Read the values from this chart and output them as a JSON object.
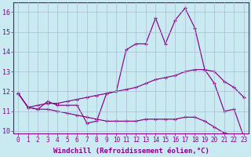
{
  "background_color": "#c8eaf0",
  "grid_color": "#b0b8d8",
  "line_color": "#880088",
  "xlabel": "Windchill (Refroidissement éolien,°C)",
  "xlabel_fontsize": 6.5,
  "xtick_fontsize": 5.5,
  "ytick_fontsize": 6.0,
  "ylim": [
    9.9,
    16.5
  ],
  "xlim": [
    -0.5,
    23.5
  ],
  "yticks": [
    10,
    11,
    12,
    13,
    14,
    15,
    16
  ],
  "xticks": [
    0,
    1,
    2,
    3,
    4,
    5,
    6,
    7,
    8,
    9,
    10,
    11,
    12,
    13,
    14,
    15,
    16,
    17,
    18,
    19,
    20,
    21,
    22,
    23
  ],
  "series": {
    "main": {
      "x": [
        0,
        1,
        2,
        3,
        4,
        5,
        6,
        7,
        8,
        9,
        10,
        11,
        12,
        13,
        14,
        15,
        16,
        17,
        18,
        19,
        20,
        21,
        22,
        23
      ],
      "y": [
        11.9,
        11.2,
        11.1,
        11.5,
        11.3,
        11.3,
        11.3,
        10.4,
        10.5,
        11.9,
        12.0,
        14.1,
        14.4,
        14.4,
        15.7,
        14.4,
        15.6,
        16.2,
        15.2,
        13.1,
        12.4,
        11.0,
        11.1,
        9.7
      ]
    },
    "upper": {
      "x": [
        0,
        1,
        2,
        3,
        4,
        5,
        6,
        7,
        8,
        9,
        10,
        11,
        12,
        13,
        14,
        15,
        16,
        17,
        18,
        19,
        20,
        21,
        22,
        23
      ],
      "y": [
        11.9,
        11.2,
        11.3,
        11.4,
        11.4,
        11.5,
        11.6,
        11.7,
        11.8,
        11.9,
        12.0,
        12.1,
        12.2,
        12.4,
        12.6,
        12.7,
        12.8,
        13.0,
        13.1,
        13.1,
        13.0,
        12.5,
        12.2,
        11.7
      ]
    },
    "lower": {
      "x": [
        0,
        1,
        2,
        3,
        4,
        5,
        6,
        7,
        8,
        9,
        10,
        11,
        12,
        13,
        14,
        15,
        16,
        17,
        18,
        19,
        20,
        21,
        22,
        23
      ],
      "y": [
        11.9,
        11.2,
        11.1,
        11.1,
        11.0,
        10.9,
        10.8,
        10.7,
        10.6,
        10.5,
        10.5,
        10.5,
        10.5,
        10.6,
        10.6,
        10.6,
        10.6,
        10.7,
        10.7,
        10.5,
        10.2,
        9.9,
        9.8,
        9.7
      ]
    }
  }
}
